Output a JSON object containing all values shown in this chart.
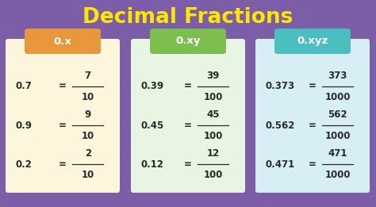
{
  "title": "Decimal Fractions",
  "title_color": "#FFE600",
  "bg_color": "#7B5EA7",
  "cards": [
    {
      "label": "0.x",
      "label_bg": "#E8973A",
      "card_bg": "#FEF6DC",
      "rows": [
        {
          "decimal": "0.7",
          "eq": "=",
          "num": "7",
          "den": "10"
        },
        {
          "decimal": "0.9",
          "eq": "=",
          "num": "9",
          "den": "10"
        },
        {
          "decimal": "0.2",
          "eq": "=",
          "num": "2",
          "den": "10"
        }
      ]
    },
    {
      "label": "0.xy",
      "label_bg": "#7DBF4E",
      "card_bg": "#E8F5E2",
      "rows": [
        {
          "decimal": "0.39",
          "eq": "=",
          "num": "39",
          "den": "100"
        },
        {
          "decimal": "0.45",
          "eq": "=",
          "num": "45",
          "den": "100"
        },
        {
          "decimal": "0.12",
          "eq": "=",
          "num": "12",
          "den": "100"
        }
      ]
    },
    {
      "label": "0.xyz",
      "label_bg": "#4BBFBF",
      "card_bg": "#D8EEF5",
      "rows": [
        {
          "decimal": "0.373",
          "eq": "=",
          "num": "373",
          "den": "1000"
        },
        {
          "decimal": "0.562",
          "eq": "=",
          "num": "562",
          "den": "1000"
        },
        {
          "decimal": "0.471",
          "eq": "=",
          "num": "471",
          "den": "1000"
        }
      ]
    }
  ]
}
